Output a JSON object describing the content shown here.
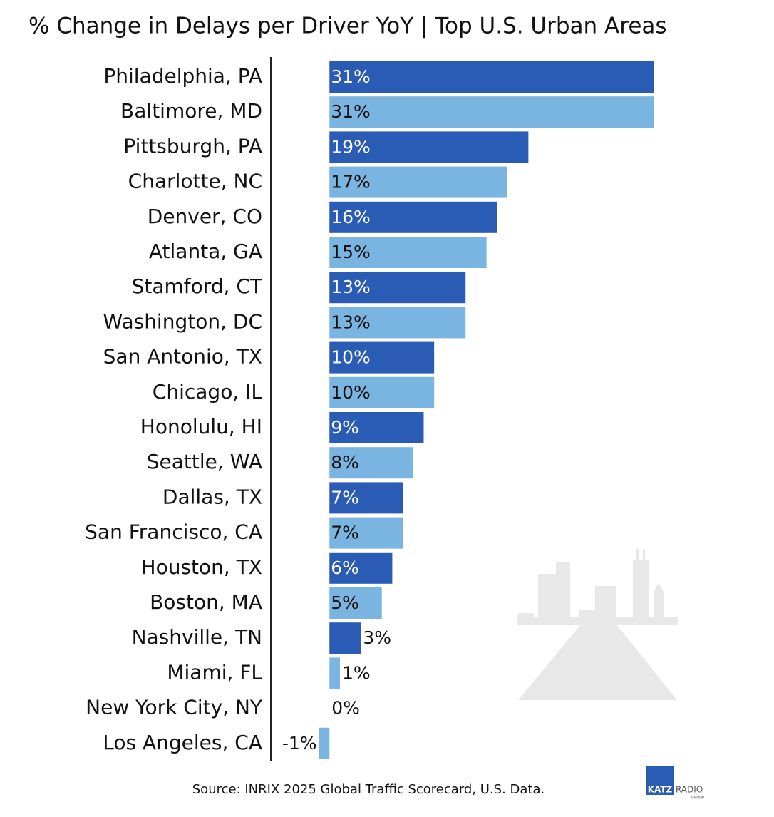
{
  "chart_data": {
    "type": "barh",
    "title": "% Change in Delays per Driver YoY | Top U.S. Urban Areas",
    "categories": [
      "Philadelphia, PA",
      "Baltimore, MD",
      "Pittsburgh, PA",
      "Charlotte, NC",
      "Denver, CO",
      "Atlanta, GA",
      "Stamford, CT",
      "Washington, DC",
      "San Antonio, TX",
      "Chicago, IL",
      "Honolulu, HI",
      "Seattle, WA",
      "Dallas, TX",
      "San Francisco, CA",
      "Houston, TX",
      "Boston, MA",
      "Nashville, TN",
      "Miami, FL",
      "New York City, NY",
      "Los Angeles, CA"
    ],
    "values": [
      31,
      31,
      19,
      17,
      16,
      15,
      13,
      13,
      10,
      10,
      9,
      8,
      7,
      7,
      6,
      5,
      3,
      1,
      0,
      -1
    ],
    "value_labels": [
      "31%",
      "31%",
      "19%",
      "17%",
      "16%",
      "15%",
      "13%",
      "13%",
      "10%",
      "10%",
      "9%",
      "8%",
      "7%",
      "7%",
      "6%",
      "5%",
      "3%",
      "1%",
      "0%",
      "-1%"
    ],
    "colors": [
      "#2a5cb5",
      "#7ab4e0",
      "#2a5cb5",
      "#7ab4e0",
      "#2a5cb5",
      "#7ab4e0",
      "#2a5cb5",
      "#7ab4e0",
      "#2a5cb5",
      "#7ab4e0",
      "#2a5cb5",
      "#7ab4e0",
      "#2a5cb5",
      "#7ab4e0",
      "#2a5cb5",
      "#7ab4e0",
      "#2a5cb5",
      "#7ab4e0",
      "#2a5cb5",
      "#7ab4e0"
    ],
    "xlim": [
      -5.6,
      31.5
    ],
    "source": "Source: INRIX 2025 Global Traffic Scorecard, U.S. Data.",
    "logo": {
      "brand": "KATZ",
      "word": "RADIO",
      "sub": "GROUP"
    }
  }
}
